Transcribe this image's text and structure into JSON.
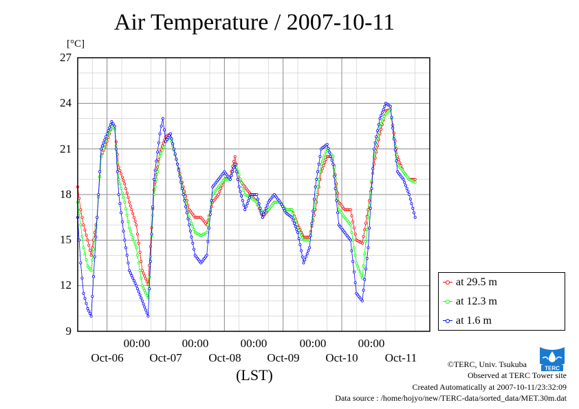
{
  "header": {
    "title": "Air Temperature / 2007-10-11",
    "unit": "[°C]"
  },
  "axis": {
    "y_ticks": [
      "27",
      "24",
      "21",
      "18",
      "15",
      "12",
      "9"
    ],
    "x_time_labels": [
      "00:00",
      "00:00",
      "00:00",
      "00:00",
      "00:00"
    ],
    "x_date_labels": [
      "Oct-06",
      "Oct-07",
      "Oct-08",
      "Oct-09",
      "Oct-10",
      "Oct-11"
    ],
    "x_unit": "(LST)"
  },
  "legend": {
    "items": [
      {
        "label": "at 29.5 m",
        "color": "#ff0000"
      },
      {
        "label": "at 12.3 m",
        "color": "#00ff00"
      },
      {
        "label": "at 1.6 m",
        "color": "#0000ff"
      }
    ]
  },
  "footer": {
    "copyright": "©TERC, Univ. Tsukuba",
    "observed": "Observed at TERC Tower site",
    "created": "Created Automatically at 2007-10-11/23:32:09",
    "source": "Data source : /home/hojyo/new/TERC-data/sorted_data/MET.30m.dat"
  },
  "logo": {
    "text": "TERC",
    "color": "#1a7ad0"
  },
  "chart_data": {
    "type": "line",
    "title": "Air Temperature / 2007-10-11",
    "ylabel": "[°C]",
    "xlabel": "(LST)",
    "ylim": [
      9,
      27
    ],
    "y_ticks": [
      9,
      12,
      15,
      18,
      21,
      24,
      27
    ],
    "xlim": [
      0,
      6
    ],
    "x_unit_note": "days from 2007-10-05 12:00 LST",
    "x_ticks": [
      0.5,
      1.5,
      2.5,
      3.5,
      4.5
    ],
    "x_tick_labels": [
      "Oct-06 00:00",
      "Oct-07 00:00",
      "Oct-08 00:00",
      "Oct-09 00:00",
      "Oct-10 00:00"
    ],
    "grid": true,
    "legend_position": "right",
    "series": [
      {
        "name": "at 29.5 m",
        "color": "#ff0000",
        "points": [
          [
            0.0,
            18.5
          ],
          [
            0.05,
            17.0
          ],
          [
            0.1,
            16.0
          ],
          [
            0.17,
            15.0
          ],
          [
            0.23,
            14.0
          ],
          [
            0.33,
            16.5
          ],
          [
            0.4,
            20.5
          ],
          [
            0.5,
            21.5
          ],
          [
            0.58,
            22.5
          ],
          [
            0.63,
            22.3
          ],
          [
            0.7,
            19.8
          ],
          [
            0.8,
            18.7
          ],
          [
            0.88,
            17.5
          ],
          [
            1.0,
            16.0
          ],
          [
            1.1,
            13.0
          ],
          [
            1.2,
            12.1
          ],
          [
            1.3,
            18.3
          ],
          [
            1.4,
            20.8
          ],
          [
            1.5,
            21.8
          ],
          [
            1.58,
            22.0
          ],
          [
            1.7,
            20.0
          ],
          [
            1.8,
            18.5
          ],
          [
            1.9,
            17.0
          ],
          [
            2.0,
            16.5
          ],
          [
            2.1,
            16.5
          ],
          [
            2.2,
            16.0
          ],
          [
            2.3,
            17.5
          ],
          [
            2.4,
            18.0
          ],
          [
            2.5,
            19.0
          ],
          [
            2.6,
            19.2
          ],
          [
            2.68,
            20.5
          ],
          [
            2.75,
            19.0
          ],
          [
            2.85,
            18.5
          ],
          [
            2.95,
            18.0
          ],
          [
            3.05,
            17.5
          ],
          [
            3.15,
            16.5
          ],
          [
            3.25,
            17.0
          ],
          [
            3.35,
            17.5
          ],
          [
            3.45,
            17.5
          ],
          [
            3.55,
            17.0
          ],
          [
            3.65,
            17.0
          ],
          [
            3.75,
            16.0
          ],
          [
            3.85,
            15.2
          ],
          [
            3.95,
            15.2
          ],
          [
            4.05,
            17.0
          ],
          [
            4.15,
            19.5
          ],
          [
            4.25,
            20.5
          ],
          [
            4.35,
            20.5
          ],
          [
            4.45,
            17.5
          ],
          [
            4.55,
            17.0
          ],
          [
            4.65,
            17.0
          ],
          [
            4.75,
            15.0
          ],
          [
            4.85,
            14.8
          ],
          [
            4.95,
            17.0
          ],
          [
            5.05,
            20.0
          ],
          [
            5.15,
            22.0
          ],
          [
            5.25,
            23.5
          ],
          [
            5.33,
            23.6
          ],
          [
            5.45,
            20.5
          ],
          [
            5.55,
            19.5
          ],
          [
            5.65,
            19.0
          ],
          [
            5.75,
            19.0
          ]
        ]
      },
      {
        "name": "at 12.3 m",
        "color": "#00ff00",
        "points": [
          [
            0.0,
            17.5
          ],
          [
            0.05,
            16.0
          ],
          [
            0.1,
            14.5
          ],
          [
            0.17,
            13.3
          ],
          [
            0.23,
            13.0
          ],
          [
            0.33,
            16.5
          ],
          [
            0.4,
            20.5
          ],
          [
            0.5,
            21.8
          ],
          [
            0.58,
            22.5
          ],
          [
            0.63,
            22.3
          ],
          [
            0.7,
            19.0
          ],
          [
            0.8,
            17.5
          ],
          [
            0.88,
            15.8
          ],
          [
            1.0,
            14.5
          ],
          [
            1.1,
            12.0
          ],
          [
            1.2,
            11.2
          ],
          [
            1.3,
            18.0
          ],
          [
            1.4,
            20.5
          ],
          [
            1.5,
            21.5
          ],
          [
            1.58,
            21.8
          ],
          [
            1.7,
            20.0
          ],
          [
            1.8,
            18.2
          ],
          [
            1.9,
            16.5
          ],
          [
            2.0,
            15.5
          ],
          [
            2.1,
            15.3
          ],
          [
            2.2,
            15.5
          ],
          [
            2.3,
            18.0
          ],
          [
            2.4,
            18.5
          ],
          [
            2.5,
            19.0
          ],
          [
            2.6,
            19.0
          ],
          [
            2.68,
            20.0
          ],
          [
            2.75,
            19.3
          ],
          [
            2.85,
            18.0
          ],
          [
            2.95,
            17.8
          ],
          [
            3.05,
            17.5
          ],
          [
            3.15,
            16.8
          ],
          [
            3.25,
            17.0
          ],
          [
            3.35,
            17.5
          ],
          [
            3.45,
            17.5
          ],
          [
            3.55,
            17.0
          ],
          [
            3.65,
            17.0
          ],
          [
            3.75,
            15.8
          ],
          [
            3.85,
            15.0
          ],
          [
            3.95,
            15.0
          ],
          [
            4.05,
            17.5
          ],
          [
            4.15,
            20.0
          ],
          [
            4.25,
            21.0
          ],
          [
            4.35,
            20.5
          ],
          [
            4.45,
            17.0
          ],
          [
            4.55,
            16.5
          ],
          [
            4.65,
            16.0
          ],
          [
            4.75,
            13.5
          ],
          [
            4.85,
            12.5
          ],
          [
            4.95,
            16.5
          ],
          [
            5.05,
            20.5
          ],
          [
            5.15,
            22.5
          ],
          [
            5.25,
            23.3
          ],
          [
            5.33,
            23.6
          ],
          [
            5.45,
            20.0
          ],
          [
            5.55,
            19.5
          ],
          [
            5.65,
            19.0
          ],
          [
            5.75,
            18.8
          ]
        ]
      },
      {
        "name": "at 1.6 m",
        "color": "#0000ff",
        "points": [
          [
            0.0,
            16.5
          ],
          [
            0.05,
            13.5
          ],
          [
            0.1,
            11.5
          ],
          [
            0.17,
            10.5
          ],
          [
            0.23,
            10.0
          ],
          [
            0.33,
            16.5
          ],
          [
            0.4,
            21.0
          ],
          [
            0.5,
            22.0
          ],
          [
            0.58,
            22.8
          ],
          [
            0.63,
            22.5
          ],
          [
            0.7,
            18.0
          ],
          [
            0.8,
            15.0
          ],
          [
            0.88,
            13.0
          ],
          [
            1.0,
            12.0
          ],
          [
            1.1,
            11.0
          ],
          [
            1.2,
            10.0
          ],
          [
            1.3,
            19.0
          ],
          [
            1.4,
            22.0
          ],
          [
            1.45,
            23.0
          ],
          [
            1.5,
            21.5
          ],
          [
            1.58,
            22.0
          ],
          [
            1.7,
            20.0
          ],
          [
            1.8,
            18.0
          ],
          [
            1.9,
            16.0
          ],
          [
            2.0,
            14.0
          ],
          [
            2.1,
            13.5
          ],
          [
            2.2,
            14.0
          ],
          [
            2.3,
            18.5
          ],
          [
            2.4,
            19.0
          ],
          [
            2.5,
            19.5
          ],
          [
            2.6,
            19.0
          ],
          [
            2.68,
            20.0
          ],
          [
            2.75,
            18.5
          ],
          [
            2.85,
            17.0
          ],
          [
            2.95,
            18.0
          ],
          [
            3.05,
            18.0
          ],
          [
            3.15,
            16.5
          ],
          [
            3.25,
            17.5
          ],
          [
            3.35,
            18.0
          ],
          [
            3.45,
            17.5
          ],
          [
            3.55,
            16.8
          ],
          [
            3.65,
            16.5
          ],
          [
            3.75,
            15.5
          ],
          [
            3.85,
            13.5
          ],
          [
            3.95,
            14.5
          ],
          [
            4.05,
            18.5
          ],
          [
            4.15,
            21.0
          ],
          [
            4.25,
            21.3
          ],
          [
            4.35,
            20.0
          ],
          [
            4.45,
            16.0
          ],
          [
            4.55,
            15.5
          ],
          [
            4.65,
            15.0
          ],
          [
            4.75,
            11.5
          ],
          [
            4.85,
            11.0
          ],
          [
            4.95,
            14.5
          ],
          [
            5.05,
            21.0
          ],
          [
            5.15,
            23.0
          ],
          [
            5.25,
            24.0
          ],
          [
            5.33,
            23.8
          ],
          [
            5.45,
            19.5
          ],
          [
            5.55,
            19.0
          ],
          [
            5.65,
            18.0
          ],
          [
            5.75,
            16.5
          ]
        ]
      }
    ]
  }
}
